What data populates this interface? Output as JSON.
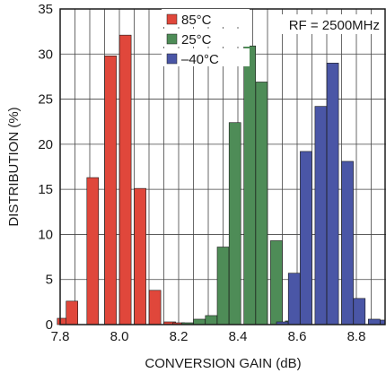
{
  "chart_data": {
    "type": "bar",
    "title": "",
    "xlabel": "CONVERSION GAIN (dB)",
    "ylabel": "DISTRIBUTION (%)",
    "xlim": [
      7.8,
      8.9
    ],
    "ylim": [
      0,
      35
    ],
    "xticks": [
      "7.8",
      "8.0",
      "8.2",
      "8.4",
      "8.6",
      "8.8"
    ],
    "yticks": [
      "0",
      "5",
      "10",
      "15",
      "20",
      "25",
      "30",
      "35"
    ],
    "grid": true,
    "legend_position": "top-center",
    "annotation": "RF = 2500MHz",
    "series": [
      {
        "name": "85°C",
        "color": "#e0473b",
        "x": [
          7.81,
          7.84,
          7.91,
          7.97,
          8.02,
          8.07,
          8.12,
          8.17,
          8.2
        ],
        "values": [
          0.7,
          2.6,
          16.3,
          29.8,
          32.1,
          15.1,
          3.8,
          0.3,
          0.2
        ]
      },
      {
        "name": "25°C",
        "color": "#4e8c57",
        "x": [
          8.23,
          8.27,
          8.31,
          8.35,
          8.39,
          8.44,
          8.48,
          8.53,
          8.58
        ],
        "values": [
          0.2,
          0.6,
          1.0,
          8.6,
          22.4,
          30.9,
          26.9,
          9.3,
          0.4
        ]
      },
      {
        "name": "–40°C",
        "color": "#4a56a6",
        "x": [
          8.55,
          8.59,
          8.63,
          8.68,
          8.72,
          8.77,
          8.81,
          8.86,
          8.9
        ],
        "values": [
          0.3,
          5.7,
          19.2,
          24.2,
          29.0,
          18.1,
          2.9,
          0.6,
          0.5
        ]
      }
    ]
  }
}
